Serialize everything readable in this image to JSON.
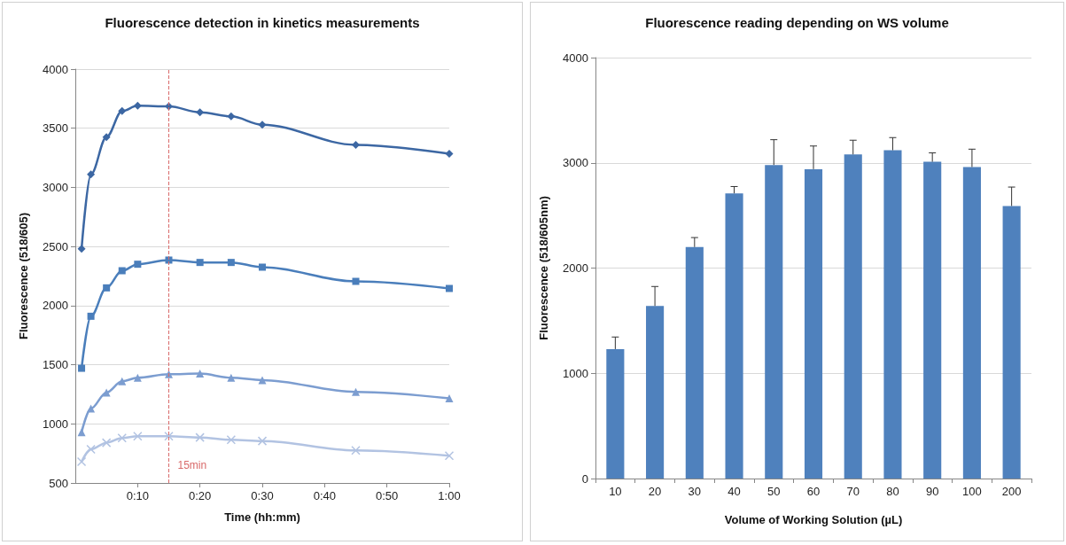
{
  "chart_data": [
    {
      "type": "line",
      "title": "Fluorescence detection in kinetics measurements",
      "xlabel": "Time (hh:mm)",
      "ylabel": "Fluorescence (518/605)",
      "x": [
        0.0167,
        0.0417,
        0.0833,
        0.125,
        0.1667,
        0.25,
        0.3333,
        0.4167,
        0.5,
        0.75,
        1
      ],
      "series": [
        {
          "color": "#3c67a3",
          "marker": "diamond",
          "values": [
            2480,
            3110,
            3425,
            3645,
            3690,
            3685,
            3635,
            3600,
            3530,
            3360,
            3285
          ]
        },
        {
          "color": "#4a7ebb",
          "marker": "square",
          "values": [
            1470,
            1910,
            2150,
            2295,
            2350,
            2385,
            2365,
            2365,
            2325,
            2205,
            2145
          ]
        },
        {
          "color": "#7c9dd0",
          "marker": "triangle",
          "values": [
            930,
            1130,
            1265,
            1360,
            1390,
            1420,
            1425,
            1390,
            1370,
            1270,
            1215
          ]
        },
        {
          "color": "#b2c3e2",
          "marker": "cross",
          "values": [
            680,
            785,
            840,
            880,
            895,
            895,
            885,
            865,
            855,
            775,
            730
          ]
        }
      ],
      "xlim": [
        0,
        1
      ],
      "xticks": [
        {
          "value": 0.1667,
          "label": "0:10"
        },
        {
          "value": 0.3333,
          "label": "0:20"
        },
        {
          "value": 0.5,
          "label": "0:30"
        },
        {
          "value": 0.6667,
          "label": "0:40"
        },
        {
          "value": 0.8333,
          "label": "0:50"
        },
        {
          "value": 1,
          "label": "1:00"
        }
      ],
      "ylim": [
        500,
        4000
      ],
      "yticks": [
        500,
        1000,
        1500,
        2000,
        2500,
        3000,
        3500,
        4000
      ],
      "ref_lines": [
        {
          "axis": "x",
          "value": 0.25,
          "label": "15min",
          "color": "#d96a6a",
          "line_style": "dashed"
        }
      ],
      "grid": "y",
      "line_style": "solid"
    },
    {
      "type": "bar",
      "title": "Fluorescence reading depending on WS volume",
      "xlabel": "Volume of Working Solution (µL)",
      "ylabel": "Fluorescence (518/605nm)",
      "categories": [
        "10",
        "20",
        "30",
        "40",
        "50",
        "60",
        "70",
        "80",
        "90",
        "100",
        "200"
      ],
      "values": [
        1230,
        1640,
        2200,
        2710,
        2980,
        2940,
        3080,
        3120,
        3010,
        2960,
        2590
      ],
      "errors": [
        [
          1230,
          1345
        ],
        [
          1640,
          1825
        ],
        [
          2200,
          2290
        ],
        [
          2710,
          2775
        ],
        [
          2980,
          3220
        ],
        [
          2940,
          3160
        ],
        [
          3080,
          3215
        ],
        [
          3120,
          3240
        ],
        [
          3010,
          3095
        ],
        [
          2960,
          3130
        ],
        [
          2590,
          2770
        ]
      ],
      "color": "#4f81bd",
      "ylim": [
        0,
        4000
      ],
      "yticks": [
        0,
        1000,
        2000,
        3000,
        4000
      ],
      "grid": "y"
    }
  ]
}
